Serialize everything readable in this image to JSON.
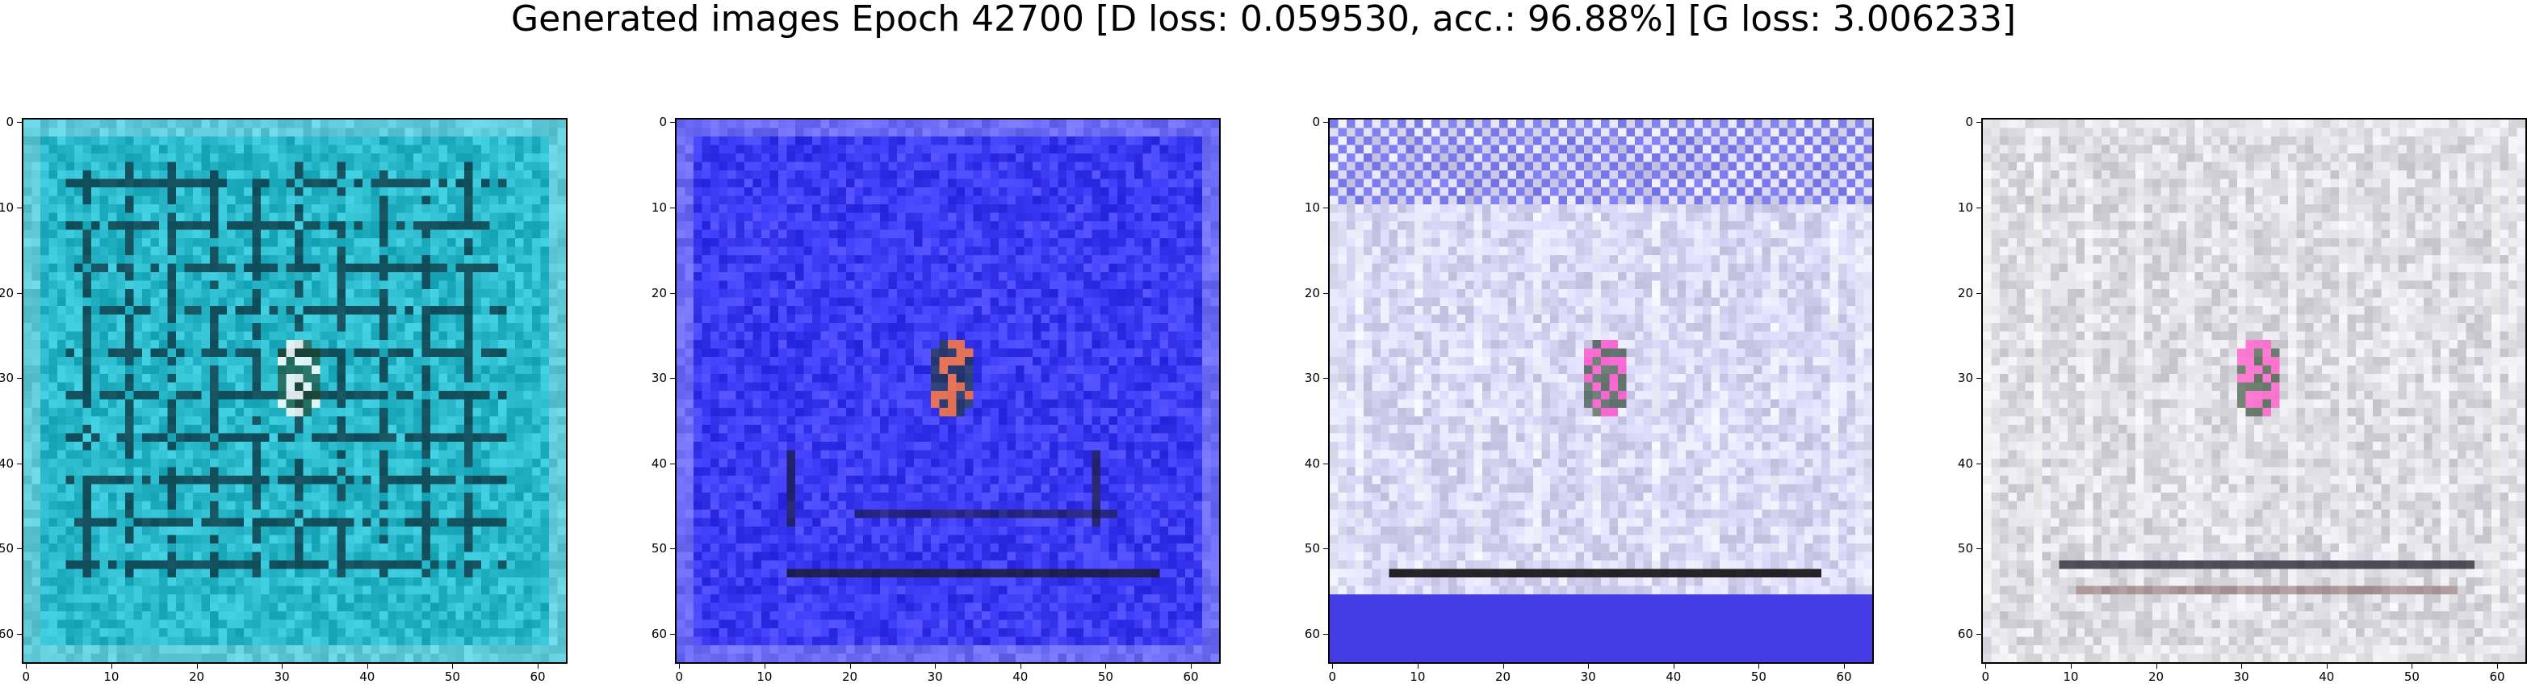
{
  "figure": {
    "title": "Generated images Epoch 42700 [D loss: 0.059530, acc.: 96.88%] [G loss: 3.006233]"
  },
  "axes": {
    "ticks": [
      "0",
      "10",
      "20",
      "30",
      "40",
      "50",
      "60"
    ]
  },
  "panels": [
    {
      "name": "panel-1",
      "base_color": "#2bb9cc",
      "grid_color": "#0c2f3a",
      "accent_color": "#ffffff"
    },
    {
      "name": "panel-2",
      "base_color": "#3d3cf4",
      "grid_color": "#1a1a3a",
      "accent_color": "#ff7a3a"
    },
    {
      "name": "panel-3",
      "base_color": "#d8d8f6",
      "grid_color": "#111111",
      "accent_color": "#ff55cc"
    },
    {
      "name": "panel-4",
      "base_color": "#dcdce2",
      "grid_color": "#2a2a36",
      "accent_color": "#ff66cc"
    }
  ]
}
